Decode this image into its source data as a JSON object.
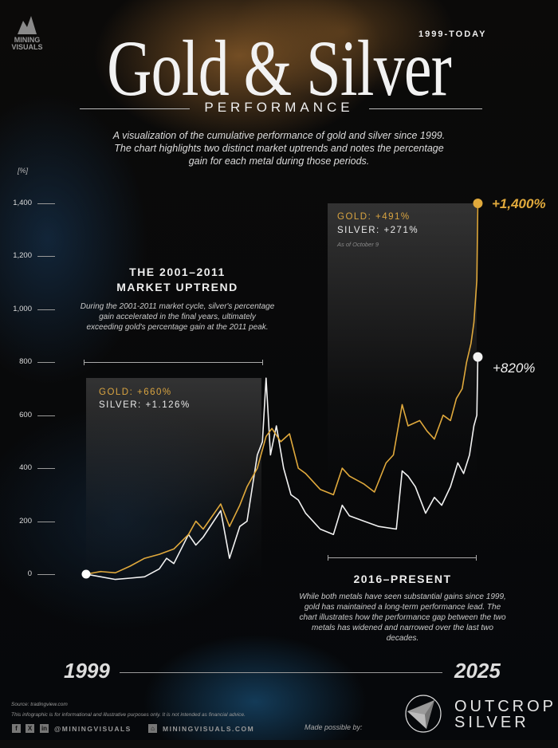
{
  "brand": {
    "logo_text": "MINING VISUALS",
    "sponsor": "OUTCROP SILVER",
    "made_possible": "Made possible by:"
  },
  "header": {
    "title": "Gold & Silver",
    "period": "1999-TODAY",
    "subtitle": "PERFORMANCE",
    "intro": "A visualization of the cumulative performance of gold and silver since 1999. The chart highlights two distinct market uptrends and notes the percentage gain for each metal during those periods."
  },
  "annotations": {
    "uptrend1": {
      "title_line1": "THE 2001–2011",
      "title_line2": "MARKET UPTREND",
      "text": "During the 2001-2011 market cycle, silver's percentage gain accelerated in the final years, ultimately exceeding gold's percentage gain at the 2011 peak.",
      "gold": "GOLD: +660%",
      "silver": "SILVER: +1.126%"
    },
    "uptrend2": {
      "title": "2016–PRESENT",
      "text": "While both metals have seen substantial gains since 1999, gold has maintained a long-term performance lead. The chart illustrates how the performance gap between the two metals has widened and narrowed over the last two decades.",
      "gold": "GOLD: +491%",
      "silver": "SILVER: +271%",
      "note": "As of October 9"
    },
    "gold_end": "+1,400%",
    "silver_end": "+820%"
  },
  "footer": {
    "source": "Source: tradingview.com",
    "disclaimer": "This infographic is for informational and illustrative purposes only. It is not intended as financial advice.",
    "social_handle": "@MININGVISUALS",
    "website": "MININGVISUALS.COM",
    "icons": [
      "facebook-icon",
      "x-icon",
      "linkedin-icon",
      "home-icon"
    ]
  },
  "chart_data": {
    "type": "line",
    "ylabel": "[%]",
    "ylim": [
      0,
      1400
    ],
    "xlim": [
      1999,
      2025.8
    ],
    "yticks": [
      "0",
      "200",
      "400",
      "600",
      "800",
      "1,000",
      "1,200",
      "1,400"
    ],
    "xlabels": [
      "1999",
      "2025"
    ],
    "grid": false,
    "colors": {
      "gold": "#e0a93c",
      "silver": "#f2f2f2"
    },
    "series": [
      {
        "key": "gold",
        "x": [
          1999,
          2000,
          2001,
          2002,
          2003,
          2004,
          2005,
          2006,
          2006.5,
          2007,
          2008.2,
          2008.8,
          2009.5,
          2010,
          2010.7,
          2011.3,
          2011.7,
          2012.3,
          2012.9,
          2013.5,
          2014,
          2015,
          2015.9,
          2016.5,
          2017,
          2018,
          2018.7,
          2019.5,
          2020,
          2020.6,
          2021,
          2021.8,
          2022.3,
          2022.8,
          2023.4,
          2023.9,
          2024.3,
          2024.7,
          2025,
          2025.3,
          2025.5,
          2025.7,
          2025.77
        ],
        "y": [
          0,
          10,
          5,
          30,
          60,
          75,
          95,
          150,
          200,
          170,
          265,
          180,
          260,
          330,
          400,
          520,
          550,
          500,
          530,
          400,
          380,
          320,
          300,
          400,
          370,
          340,
          310,
          420,
          450,
          640,
          560,
          580,
          540,
          510,
          600,
          580,
          663,
          700,
          800,
          870,
          950,
          1110,
          1400
        ]
      },
      {
        "key": "silver",
        "x": [
          1999,
          2000,
          2001,
          2002,
          2003,
          2004,
          2004.5,
          2005,
          2006,
          2006.5,
          2007,
          2008.2,
          2008.8,
          2009.5,
          2010,
          2010.7,
          2011.05,
          2011.3,
          2011.6,
          2012,
          2012.5,
          2013,
          2013.5,
          2014,
          2015,
          2015.9,
          2016.5,
          2017,
          2018,
          2019,
          2020.2,
          2020.6,
          2021,
          2021.5,
          2022.2,
          2022.8,
          2023.3,
          2023.9,
          2024.4,
          2024.8,
          2025.2,
          2025.5,
          2025.7,
          2025.77
        ],
        "y": [
          0,
          -10,
          -20,
          -15,
          -10,
          20,
          60,
          40,
          150,
          110,
          140,
          240,
          60,
          180,
          200,
          450,
          500,
          740,
          450,
          560,
          400,
          300,
          280,
          230,
          170,
          150,
          260,
          220,
          200,
          180,
          170,
          390,
          370,
          330,
          230,
          290,
          260,
          330,
          420,
          380,
          450,
          560,
          600,
          820
        ]
      }
    ]
  }
}
